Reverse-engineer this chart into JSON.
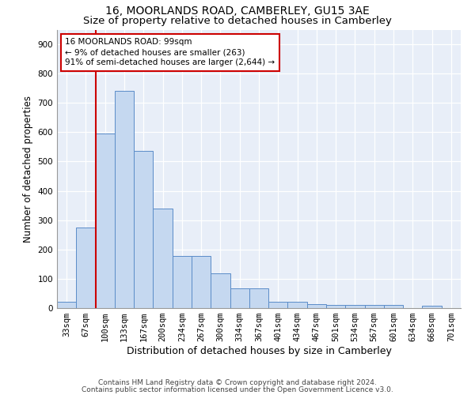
{
  "title1": "16, MOORLANDS ROAD, CAMBERLEY, GU15 3AE",
  "title2": "Size of property relative to detached houses in Camberley",
  "xlabel": "Distribution of detached houses by size in Camberley",
  "ylabel": "Number of detached properties",
  "categories": [
    "33sqm",
    "67sqm",
    "100sqm",
    "133sqm",
    "167sqm",
    "200sqm",
    "234sqm",
    "267sqm",
    "300sqm",
    "334sqm",
    "367sqm",
    "401sqm",
    "434sqm",
    "467sqm",
    "501sqm",
    "534sqm",
    "567sqm",
    "601sqm",
    "634sqm",
    "668sqm",
    "701sqm"
  ],
  "values": [
    22,
    275,
    595,
    740,
    535,
    340,
    178,
    178,
    118,
    68,
    68,
    22,
    22,
    13,
    12,
    10,
    10,
    10,
    0,
    8,
    0
  ],
  "bar_color": "#c5d8f0",
  "bar_edge_color": "#5b8cc8",
  "vline_color": "#cc0000",
  "vline_pos": 1.5,
  "annotation_text": "16 MOORLANDS ROAD: 99sqm\n← 9% of detached houses are smaller (263)\n91% of semi-detached houses are larger (2,644) →",
  "annotation_box_facecolor": "#ffffff",
  "annotation_box_edgecolor": "#cc0000",
  "ylim": [
    0,
    950
  ],
  "yticks": [
    0,
    100,
    200,
    300,
    400,
    500,
    600,
    700,
    800,
    900
  ],
  "background_color": "#e8eef8",
  "footer1": "Contains HM Land Registry data © Crown copyright and database right 2024.",
  "footer2": "Contains public sector information licensed under the Open Government Licence v3.0.",
  "title1_fontsize": 10,
  "title2_fontsize": 9.5,
  "xlabel_fontsize": 9,
  "ylabel_fontsize": 8.5,
  "tick_fontsize": 7.5,
  "annotation_fontsize": 7.5,
  "footer_fontsize": 6.5
}
